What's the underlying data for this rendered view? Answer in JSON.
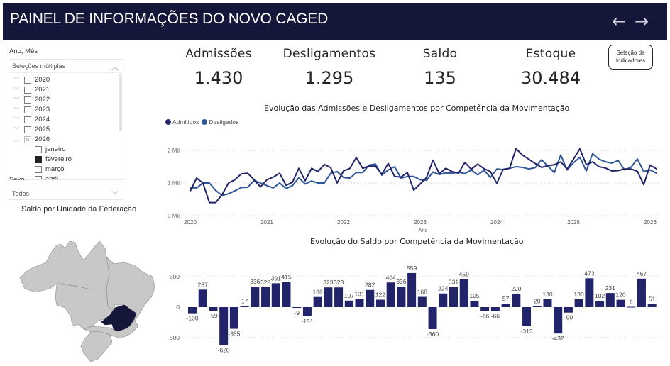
{
  "header": {
    "title": "PAINEL DE INFORMAÇÕES DO NOVO CAGED",
    "back_icon": "arrow-left-icon",
    "forward_icon": "arrow-right-icon",
    "back_glyph": "←",
    "forward_glyph": "→"
  },
  "slicer_ano_mes": {
    "label": "Ano, Mês",
    "summary": "Seleções múltiplas",
    "years": [
      {
        "label": "2020",
        "expanded": false,
        "state": "unchecked"
      },
      {
        "label": "2021",
        "expanded": false,
        "state": "unchecked"
      },
      {
        "label": "2022",
        "expanded": false,
        "state": "unchecked"
      },
      {
        "label": "2023",
        "expanded": false,
        "state": "unchecked"
      },
      {
        "label": "2024",
        "expanded": false,
        "state": "unchecked"
      },
      {
        "label": "2025",
        "expanded": false,
        "state": "unchecked"
      },
      {
        "label": "2026",
        "expanded": true,
        "state": "partial"
      }
    ],
    "months": [
      {
        "label": "janeiro",
        "state": "unchecked"
      },
      {
        "label": "fevereiro",
        "state": "checked"
      },
      {
        "label": "março",
        "state": "unchecked"
      },
      {
        "label": "abril",
        "state": "unchecked"
      }
    ]
  },
  "slicer_sexo": {
    "label": "Sexo",
    "value": "Todos"
  },
  "map": {
    "title": "Saldo por Unidade da Federação",
    "highlighted_state": "MG",
    "highlight_color": "#14163a",
    "base_color": "#c8c8c8"
  },
  "kpis": [
    {
      "label": "Admissões",
      "value": "1.430"
    },
    {
      "label": "Desligamentos",
      "value": "1.295"
    },
    {
      "label": "Saldo",
      "value": "135"
    },
    {
      "label": "Estoque",
      "value": "30.484"
    }
  ],
  "selection_button": {
    "line1": "Seleção de",
    "line2": "Indicadores"
  },
  "colors": {
    "header_bg": "#14163a",
    "admitidos": "#22246a",
    "desligados": "#2e5597",
    "bar": "#22246a"
  },
  "chart_data": [
    {
      "type": "line",
      "title": "Evolução das Admissões e Desligamentos por Competência da Movimentação",
      "xlabel": "Ano",
      "ylabel": "",
      "x_ticks": [
        "2020",
        "2021",
        "2022",
        "2023",
        "2024",
        "2025",
        "2026"
      ],
      "y_ticks": [
        "0 Mil",
        "1 Mil",
        "2 Mil"
      ],
      "ylim": [
        0,
        2000
      ],
      "legend": "top-left",
      "grid": true,
      "x_start": "2020-01",
      "frequency": "monthly",
      "series": [
        {
          "name": "Admitidos",
          "values": [
            750,
            1150,
            1000,
            400,
            400,
            650,
            1000,
            1100,
            1280,
            1300,
            1100,
            880,
            1100,
            1180,
            1300,
            930,
            1020,
            1450,
            1070,
            1450,
            1350,
            1570,
            1470,
            1000,
            1370,
            1450,
            1780,
            1450,
            1520,
            1520,
            1270,
            1600,
            1200,
            1180,
            1320,
            780,
            970,
            1170,
            1700,
            1280,
            1450,
            1350,
            1300,
            1630,
            1420,
            1580,
            1440,
            1350,
            990,
            1420,
            1450,
            2050,
            1860,
            1730,
            1600,
            1480,
            1530,
            1560,
            1650,
            1430,
            1730,
            2050,
            1560,
            1650,
            1500,
            1460,
            1370,
            1380,
            1430,
            1430,
            1360,
            950,
            1550,
            1430
          ]
        },
        {
          "name": "Desligados",
          "values": [
            850,
            850,
            1000,
            1000,
            770,
            620,
            670,
            760,
            860,
            870,
            1080,
            1000,
            920,
            850,
            1000,
            830,
            920,
            1160,
            970,
            1060,
            1000,
            1000,
            1300,
            1350,
            1170,
            1150,
            1320,
            1320,
            1550,
            1580,
            1240,
            1400,
            1500,
            1150,
            1200,
            1200,
            1100,
            1080,
            1340,
            1260,
            1310,
            1300,
            1330,
            1290,
            1400,
            1250,
            1390,
            1170,
            1430,
            1410,
            1450,
            1500,
            1480,
            1430,
            1470,
            1710,
            1520,
            1320,
            1860,
            1400,
            1620,
            1790,
            1370,
            1900,
            1730,
            1650,
            1610,
            1690,
            1400,
            1480,
            1740,
            1350,
            1400,
            1300
          ]
        }
      ]
    },
    {
      "type": "bar",
      "title": "Evolução do Saldo por Competência da Movimentação",
      "xlabel": "",
      "ylabel": "",
      "y_ticks": [
        "-500",
        "0",
        "500"
      ],
      "ylim": [
        -650,
        600
      ],
      "grid": true,
      "data_labels": true,
      "values": [
        -100,
        287,
        -59,
        -620,
        -355,
        17,
        336,
        328,
        391,
        415,
        -9,
        -151,
        166,
        323,
        323,
        107,
        131,
        282,
        122,
        404,
        336,
        559,
        168,
        -360,
        224,
        331,
        459,
        105,
        -66,
        -66,
        57,
        220,
        -313,
        20,
        130,
        -432,
        -90,
        130,
        473,
        102,
        231,
        120,
        6,
        467,
        51
      ]
    }
  ]
}
